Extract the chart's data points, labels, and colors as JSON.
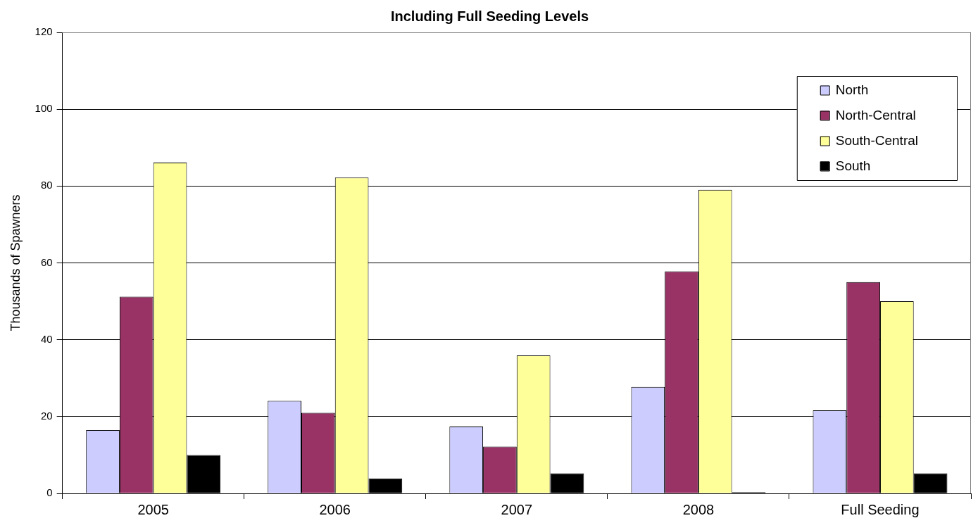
{
  "chart_data": {
    "type": "bar",
    "title": "Including Full Seeding Levels",
    "ylabel": "Thousands of Spawners",
    "categories": [
      "2005",
      "2006",
      "2007",
      "2008",
      "Full Seeding"
    ],
    "series": [
      {
        "name": "North",
        "color": "#ccccff",
        "values": [
          16.5,
          24.1,
          17.4,
          27.7,
          21.6
        ]
      },
      {
        "name": "North-Central",
        "color": "#993366",
        "values": [
          51.2,
          21.0,
          12.2,
          57.8,
          55.0
        ]
      },
      {
        "name": "South-Central",
        "color": "#ffff99",
        "values": [
          86.1,
          82.2,
          35.9,
          79.0,
          50.0
        ]
      },
      {
        "name": "South",
        "color": "#000000",
        "values": [
          10.0,
          3.9,
          5.2,
          0.3,
          5.2
        ]
      }
    ],
    "ylim": [
      0,
      120
    ],
    "yticks": [
      0,
      20,
      40,
      60,
      80,
      100,
      120
    ],
    "grid": "y",
    "legend": "top right"
  }
}
